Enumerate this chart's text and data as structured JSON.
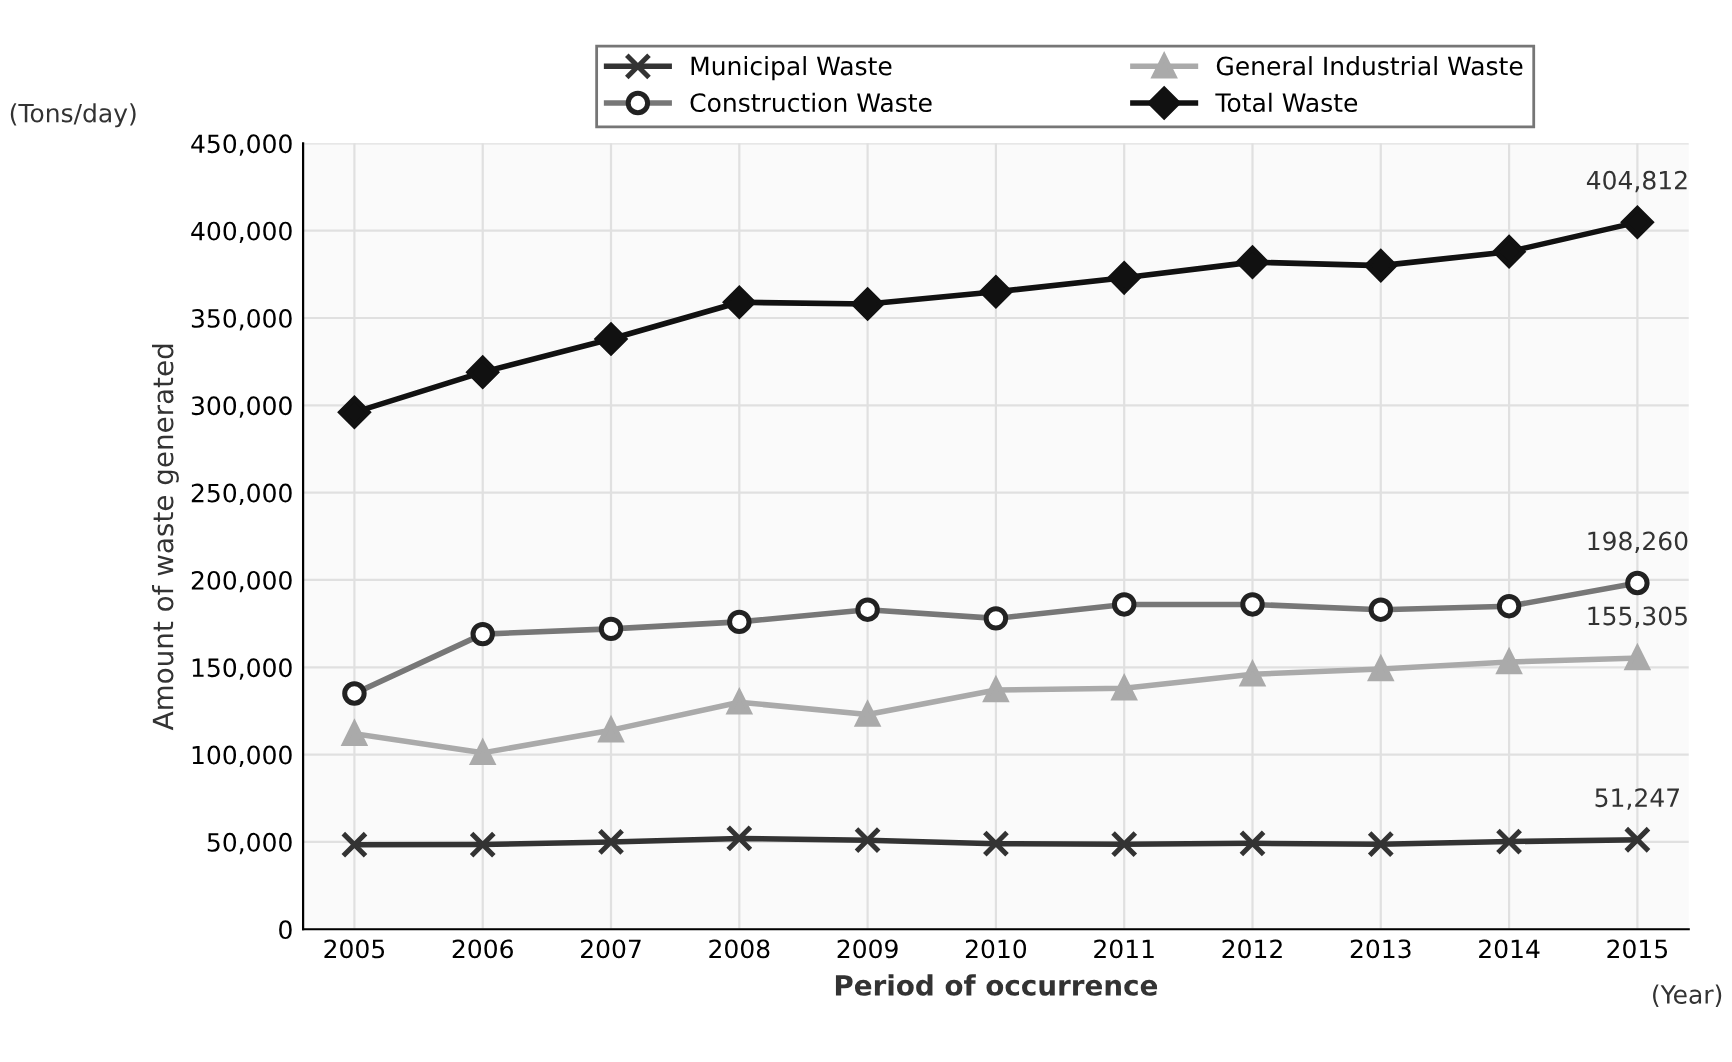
{
  "chart_data": {
    "type": "line",
    "categories": [
      "2005",
      "2006",
      "2007",
      "2008",
      "2009",
      "2010",
      "2011",
      "2012",
      "2013",
      "2014",
      "2015"
    ],
    "series": [
      {
        "name": "Municipal Waste",
        "color": "#333333",
        "marker": "cross",
        "values": [
          48400,
          48500,
          50000,
          52000,
          51000,
          49000,
          48700,
          49200,
          48700,
          50200,
          51247
        ],
        "value_labels": [
          null,
          null,
          null,
          null,
          null,
          null,
          null,
          null,
          null,
          null,
          "51,247"
        ]
      },
      {
        "name": "General Industrial Waste",
        "color": "#aaaaaa",
        "marker": "triangle",
        "values": [
          112000,
          101000,
          114000,
          130000,
          123000,
          137000,
          138000,
          146000,
          149000,
          153000,
          155305
        ],
        "value_labels": [
          null,
          null,
          null,
          null,
          null,
          null,
          null,
          null,
          null,
          null,
          "155,305"
        ]
      },
      {
        "name": "Construction Waste",
        "color": "#777777",
        "marker": "circle",
        "values": [
          135000,
          169000,
          172000,
          176000,
          183000,
          178000,
          186000,
          186000,
          183000,
          185000,
          198260
        ],
        "value_labels": [
          null,
          null,
          null,
          null,
          null,
          null,
          null,
          null,
          null,
          null,
          "198,260"
        ]
      },
      {
        "name": "Total Waste",
        "color": "#111111",
        "marker": "diamond",
        "values": [
          296000,
          319000,
          338000,
          359000,
          358000,
          365000,
          373000,
          382000,
          380000,
          388000,
          404812
        ],
        "value_labels": [
          null,
          null,
          null,
          null,
          null,
          null,
          null,
          null,
          null,
          null,
          "404,812"
        ]
      }
    ],
    "xlabel": "Period of occurrence",
    "ylabel": "Amount of waste generated",
    "annotations": [
      "(Tons/day)",
      "(Year)"
    ],
    "ylim": [
      0,
      450000
    ],
    "yticks": [
      {
        "value": 0,
        "label": "0"
      },
      {
        "value": 50000,
        "label": "50,000"
      },
      {
        "value": 100000,
        "label": "100,000"
      },
      {
        "value": 150000,
        "label": "150,000"
      },
      {
        "value": 200000,
        "label": "200,000"
      },
      {
        "value": 250000,
        "label": "250,000"
      },
      {
        "value": 300000,
        "label": "300,000"
      },
      {
        "value": 350000,
        "label": "350,000"
      },
      {
        "value": 400000,
        "label": "400,000"
      },
      {
        "value": 450000,
        "label": "450,000"
      }
    ],
    "grid": true,
    "legend": "top",
    "line_style": "solid"
  }
}
